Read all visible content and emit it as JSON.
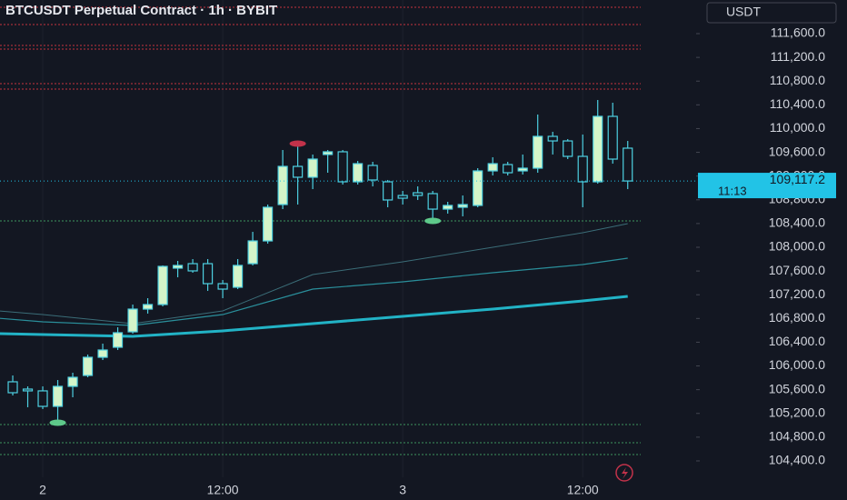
{
  "chart_data": {
    "type": "candlestick",
    "title": "BTCUSDT Perpetual Contract · 1h · BYBIT",
    "currency": "USDT",
    "up_color": "#d4f5c9",
    "down_color": "#131722",
    "edge_color": "#4dd0e1",
    "x": [
      -2,
      -1,
      0,
      1,
      2,
      3,
      4,
      5,
      6,
      7,
      8,
      9,
      10,
      11,
      12,
      13,
      14,
      15,
      16,
      17,
      18,
      19,
      20,
      21,
      22,
      23,
      24,
      25,
      26,
      27,
      28,
      29,
      30,
      31,
      32,
      33,
      34,
      35,
      36,
      37,
      38,
      39
    ],
    "open": [
      105733,
      105610,
      105580,
      105319,
      105656,
      105840,
      106146,
      106315,
      106575,
      106958,
      107035,
      107648,
      107724,
      107724,
      107387,
      107326,
      107724,
      108107,
      108720,
      109363,
      109180,
      109563,
      109609,
      109103,
      109379,
      109103,
      108873,
      108919,
      108904,
      108643,
      108674,
      108705,
      109287,
      109394,
      109287,
      109333,
      109869,
      109792,
      109532,
      109103,
      110206,
      109670
    ],
    "high": [
      105840,
      105656,
      105656,
      105763,
      105886,
      106192,
      106376,
      106652,
      107035,
      107142,
      107694,
      107770,
      107801,
      107801,
      107448,
      107801,
      108260,
      108720,
      109639,
      109746,
      109563,
      109639,
      109639,
      109455,
      109440,
      109134,
      108950,
      109026,
      108950,
      108766,
      108873,
      109333,
      109517,
      109440,
      109563,
      110237,
      109946,
      109823,
      109900,
      110482,
      110436,
      109792
    ],
    "low": [
      105503,
      105304,
      105273,
      105043,
      105472,
      105809,
      106100,
      106269,
      106545,
      106882,
      107004,
      107494,
      107571,
      107265,
      107142,
      107295,
      107694,
      108061,
      108643,
      108720,
      108980,
      109256,
      109057,
      109057,
      109026,
      108674,
      108720,
      108797,
      108444,
      108567,
      108521,
      108674,
      109210,
      109210,
      109226,
      109256,
      109563,
      109486,
      108674,
      109072,
      109409,
      108980
    ],
    "close": [
      105549,
      105580,
      105319,
      105656,
      105809,
      106146,
      106269,
      106560,
      106958,
      107035,
      107678,
      107694,
      107602,
      107387,
      107295,
      107694,
      108107,
      108674,
      109363,
      109180,
      109486,
      109609,
      109103,
      109409,
      109134,
      108797,
      108827,
      108873,
      108643,
      108705,
      108720,
      109287,
      109409,
      109256,
      109333,
      109869,
      109792,
      109532,
      109103,
      110206,
      109486,
      109117.2
    ],
    "ma_x": [
      -3,
      0,
      6,
      12,
      18,
      24,
      30,
      36,
      39
    ],
    "moving_averages": [
      {
        "color": "#22b3c6",
        "width": 3,
        "values": [
          106545,
          106529,
          106499,
          106591,
          106713,
          106836,
          106958,
          107096,
          107173
        ]
      },
      {
        "color": "#2a8f9b",
        "width": 1.2,
        "values": [
          106805,
          106744,
          106682,
          106866,
          107295,
          107418,
          107571,
          107709,
          107816
        ]
      },
      {
        "color": "#3b6d78",
        "width": 1,
        "values": [
          106928,
          106866,
          106713,
          106928,
          107540,
          107755,
          108000,
          108245,
          108398
        ]
      }
    ],
    "levels": [
      {
        "price": 112044,
        "color": "#8a2a35"
      },
      {
        "price": 111753,
        "color": "#8a2a35"
      },
      {
        "price": 111401,
        "color": "#8a2a35"
      },
      {
        "price": 111339,
        "color": "#8a2a35"
      },
      {
        "price": 110757,
        "color": "#8a2a35"
      },
      {
        "price": 110665,
        "color": "#8a2a35"
      },
      {
        "price": 108444,
        "color": "#2f6b4a"
      },
      {
        "price": 105012,
        "color": "#2f6b4a"
      },
      {
        "price": 104706,
        "color": "#2f6b4a"
      },
      {
        "price": 104507,
        "color": "#2f6b4a"
      }
    ],
    "pivots": [
      {
        "x": 17,
        "price": 109746,
        "color": "#c2324a"
      },
      {
        "x": 26,
        "price": 108444,
        "color": "#5ec98a"
      },
      {
        "x": 1,
        "price": 105043,
        "color": "#5ec98a"
      }
    ],
    "last_price": 109117.2,
    "last_price_label": "109,117.2",
    "countdown": "11:13",
    "last_color": "#22c3e6",
    "xlim": [
      -2.85,
      43.5
    ],
    "xticks": [
      {
        "value": 0,
        "label": "2"
      },
      {
        "value": 12,
        "label": "12:00"
      },
      {
        "value": 24,
        "label": "3"
      },
      {
        "value": 36,
        "label": "12:00"
      }
    ],
    "ylim": [
      104124,
      112167
    ],
    "yticks": [
      {
        "value": 104400,
        "label": "104,400.0"
      },
      {
        "value": 104800,
        "label": "104,800.0"
      },
      {
        "value": 105200,
        "label": "105,200.0"
      },
      {
        "value": 105600,
        "label": "105,600.0"
      },
      {
        "value": 106000,
        "label": "106,000.0"
      },
      {
        "value": 106400,
        "label": "106,400.0"
      },
      {
        "value": 106800,
        "label": "106,800.0"
      },
      {
        "value": 107200,
        "label": "107,200.0"
      },
      {
        "value": 107600,
        "label": "107,600.0"
      },
      {
        "value": 108000,
        "label": "108,000.0"
      },
      {
        "value": 108400,
        "label": "108,400.0"
      },
      {
        "value": 108800,
        "label": "108,800.0"
      },
      {
        "value": 109200,
        "label": "109,200.0"
      },
      {
        "value": 109600,
        "label": "109,600.0"
      },
      {
        "value": 110000,
        "label": "110,000.0"
      },
      {
        "value": 110400,
        "label": "110,400.0"
      },
      {
        "value": 110800,
        "label": "110,800.0"
      },
      {
        "value": 111200,
        "label": "111,200.0"
      },
      {
        "value": 111600,
        "label": "111,600.0"
      }
    ]
  }
}
